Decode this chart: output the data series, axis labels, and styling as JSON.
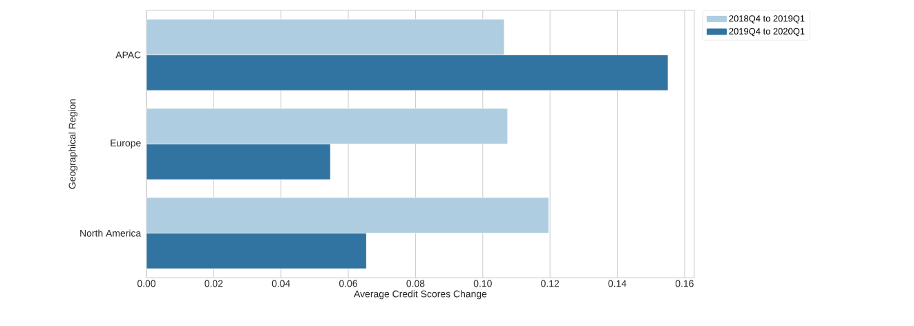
{
  "chart_data": {
    "type": "bar",
    "orientation": "horizontal",
    "xlabel": "Average Credit Scores Change",
    "ylabel": "Geographical Region",
    "categories": [
      "APAC",
      "Europe",
      "North America"
    ],
    "series": [
      {
        "name": "2018Q4 to 2019Q1",
        "color": "#afcde0",
        "values": [
          0.1064,
          0.1074,
          0.1196
        ]
      },
      {
        "name": "2019Q4 to 2020Q1",
        "color": "#3274a1",
        "values": [
          0.1551,
          0.0547,
          0.0654
        ]
      }
    ],
    "xlim": [
      0,
      0.1629
    ],
    "xticks": [
      {
        "value": 0,
        "label": "0.00"
      },
      {
        "value": 0.02,
        "label": "0.02"
      },
      {
        "value": 0.04,
        "label": "0.04"
      },
      {
        "value": 0.06,
        "label": "0.06"
      },
      {
        "value": 0.08,
        "label": "0.08"
      },
      {
        "value": 0.1,
        "label": "0.10"
      },
      {
        "value": 0.12,
        "label": "0.12"
      },
      {
        "value": 0.14,
        "label": "0.14"
      },
      {
        "value": 0.16,
        "label": "0.16"
      }
    ],
    "grid": "x",
    "legend": "top right"
  }
}
